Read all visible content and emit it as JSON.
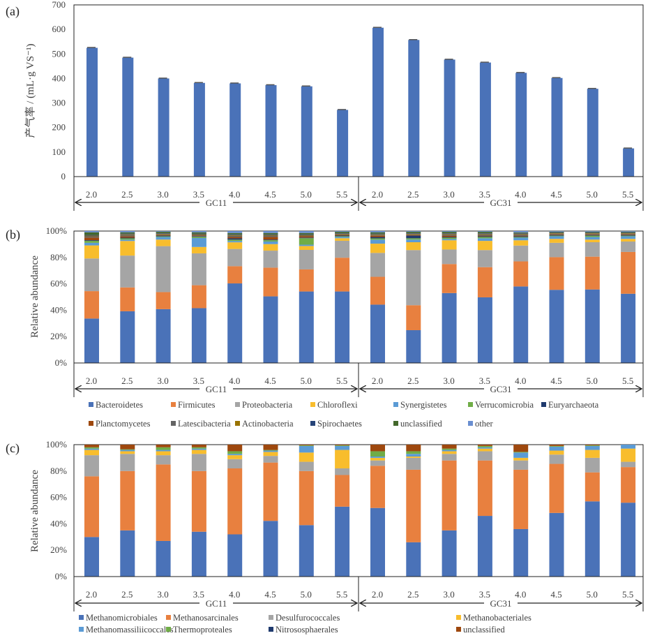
{
  "chart_data": [
    {
      "panel": "(a)",
      "type": "bar",
      "ylabel": "产气率 / (mL·g VS⁻¹)",
      "ylim": [
        0,
        700
      ],
      "yticks": [
        0,
        100,
        200,
        300,
        400,
        500,
        600,
        700
      ],
      "groups": [
        {
          "name": "GC11",
          "categories": [
            "2.0",
            "2.5",
            "3.0",
            "3.5",
            "4.0",
            "4.5",
            "5.0",
            "5.5"
          ],
          "values": [
            525,
            485,
            400,
            382,
            380,
            373,
            368,
            272
          ]
        },
        {
          "name": "GC31",
          "categories": [
            "2.0",
            "2.5",
            "3.0",
            "3.5",
            "4.0",
            "4.5",
            "5.0",
            "5.5"
          ],
          "values": [
            607,
            557,
            477,
            465,
            423,
            402,
            358,
            115
          ]
        }
      ],
      "color": "#4a72b8",
      "error_bars": true
    },
    {
      "panel": "(b)",
      "type": "bar",
      "stacked": true,
      "ylabel": "Relative abundance",
      "ylim": [
        0,
        100
      ],
      "yticks": [
        "0%",
        "20%",
        "40%",
        "60%",
        "80%",
        "100%"
      ],
      "group_names": [
        "GC11",
        "GC31"
      ],
      "categories": [
        "2.0",
        "2.5",
        "3.0",
        "3.5",
        "4.0",
        "4.5",
        "5.0",
        "5.5",
        "2.0",
        "2.5",
        "3.0",
        "3.5",
        "4.0",
        "4.5",
        "5.0",
        "5.5"
      ],
      "legend_position": "bottom",
      "series": [
        {
          "name": "Bacteroidetes",
          "color": "#4a72b8",
          "values": [
            34,
            39,
            41,
            43,
            60,
            51,
            55,
            55,
            44,
            25,
            53,
            50,
            58,
            56,
            56,
            53
          ]
        },
        {
          "name": "Firmicutes",
          "color": "#e8803f",
          "values": [
            21,
            18,
            13,
            18,
            13,
            22,
            17,
            26,
            21,
            19,
            22,
            23,
            19,
            25,
            25,
            32
          ]
        },
        {
          "name": "Proteobacteria",
          "color": "#a5a5a5",
          "values": [
            25,
            24,
            35,
            25,
            13,
            13,
            15,
            13,
            18,
            42,
            11,
            13,
            12,
            11,
            11,
            8
          ]
        },
        {
          "name": "Chloroflexi",
          "color": "#f8bd2d",
          "values": [
            10,
            11,
            5,
            5,
            5,
            5,
            3,
            2,
            7,
            6,
            7,
            7,
            4,
            3,
            2,
            2
          ]
        },
        {
          "name": "Synergistetes",
          "color": "#5b9bd5",
          "values": [
            2,
            1,
            2,
            7,
            1,
            2,
            1,
            1,
            3,
            2,
            1,
            2,
            2,
            2,
            2,
            2
          ]
        },
        {
          "name": "Verrucomicrobia",
          "color": "#70ad47",
          "values": [
            1.5,
            1,
            0.5,
            1,
            1,
            1,
            5,
            0.5,
            1,
            1,
            1,
            1,
            0.5,
            0.5,
            1,
            0.5
          ]
        },
        {
          "name": "Euryarchaeota",
          "color": "#1f3a6e",
          "values": [
            0.5,
            0.5,
            0.5,
            0.5,
            1,
            0.5,
            0.5,
            0.5,
            1,
            2,
            0.5,
            0.5,
            0.5,
            0.5,
            0.5,
            0.5
          ]
        },
        {
          "name": "Planctomycetes",
          "color": "#9e480e",
          "values": [
            2,
            1,
            0.5,
            0.5,
            1,
            2,
            1,
            0.5,
            1,
            0.5,
            1,
            0.5,
            0.5,
            0.5,
            0.5,
            0.5
          ]
        },
        {
          "name": "Latescibacteria",
          "color": "#636363",
          "values": [
            1,
            1,
            0.5,
            0.5,
            1,
            1,
            0.5,
            0.5,
            0.5,
            0.5,
            1,
            1,
            1,
            0.5,
            0.5,
            0.5
          ]
        },
        {
          "name": "Actinobacteria",
          "color": "#997300",
          "values": [
            0.5,
            0.5,
            0.5,
            0.5,
            0.5,
            0.5,
            0.5,
            0.5,
            0.5,
            0.5,
            0.5,
            0.5,
            0.5,
            0.5,
            0.5,
            0.5
          ]
        },
        {
          "name": "Spirochaetes",
          "color": "#264478",
          "values": [
            0.5,
            0.5,
            0.5,
            0.5,
            0.5,
            0.5,
            0.5,
            0.5,
            0.5,
            0.5,
            0.5,
            0.5,
            0.5,
            0.5,
            0.5,
            0.5
          ]
        },
        {
          "name": "unclassified",
          "color": "#43682b",
          "values": [
            2,
            1,
            1,
            1,
            1,
            1,
            1,
            1,
            1,
            1,
            1,
            1,
            0.5,
            0.5,
            0.5,
            0.5
          ]
        },
        {
          "name": "other",
          "color": "#698ed0",
          "values": [
            1,
            1,
            0.5,
            1,
            1.5,
            1.5,
            1.5,
            0.5,
            1,
            0.5,
            0.5,
            0.5,
            1,
            0.5,
            0.5,
            0.5
          ]
        }
      ]
    },
    {
      "panel": "(c)",
      "type": "bar",
      "stacked": true,
      "ylabel": "Relative abundance",
      "ylim": [
        0,
        100
      ],
      "yticks": [
        "0%",
        "20%",
        "40%",
        "60%",
        "80%",
        "100%"
      ],
      "group_names": [
        "GC11",
        "GC31"
      ],
      "categories": [
        "2.0",
        "2.5",
        "3.0",
        "3.5",
        "4.0",
        "4.5",
        "5.0",
        "5.5",
        "2.0",
        "2.5",
        "3.0",
        "3.5",
        "4.0",
        "4.5",
        "5.0",
        "5.5"
      ],
      "legend_position": "bottom",
      "series": [
        {
          "name": "Methanomicrobiales",
          "color": "#4a72b8",
          "values": [
            30,
            35,
            27,
            34,
            32,
            42,
            39,
            53,
            52,
            26,
            35,
            46,
            36,
            48,
            57,
            56
          ]
        },
        {
          "name": "Methanosarcinales",
          "color": "#e8803f",
          "values": [
            46,
            45,
            58,
            46,
            50,
            44,
            41,
            24,
            32,
            55,
            53,
            42,
            45,
            37,
            22,
            27
          ]
        },
        {
          "name": "Desulfurococcales",
          "color": "#a5a5a5",
          "values": [
            16,
            13,
            7,
            13,
            7,
            5,
            7,
            5,
            4,
            9,
            5,
            7,
            7,
            7,
            11,
            4
          ]
        },
        {
          "name": "Methanobacteriales",
          "color": "#f8bd2d",
          "values": [
            4,
            2,
            3,
            3,
            3,
            3,
            7,
            14,
            2,
            1,
            2,
            2,
            2,
            3,
            6,
            10
          ]
        },
        {
          "name": "Methanomassiliicoccales",
          "color": "#5b9bd5",
          "values": [
            1,
            1,
            1,
            1,
            1,
            1,
            5,
            3,
            1,
            2,
            1,
            1,
            4,
            3,
            3,
            3
          ]
        },
        {
          "name": "Thermoproteales",
          "color": "#70ad47",
          "values": [
            1,
            0.5,
            2,
            1,
            2,
            0.5,
            0.5,
            0.5,
            4,
            2,
            1,
            1,
            0.5,
            0.5,
            0.5,
            0
          ]
        },
        {
          "name": "Nitrososphaerales",
          "color": "#1f3a6e",
          "values": [
            0,
            0,
            0,
            0,
            0,
            0,
            0,
            0,
            0,
            0,
            0,
            0,
            0,
            0,
            0,
            0
          ]
        },
        {
          "name": "unclassified",
          "color": "#9e480e",
          "values": [
            2,
            3.5,
            2,
            2,
            5,
            4,
            0.5,
            0.5,
            5,
            5,
            3,
            1,
            5.5,
            1,
            0.5,
            0
          ]
        }
      ]
    }
  ],
  "group_labels": [
    "GC11",
    "GC31"
  ]
}
